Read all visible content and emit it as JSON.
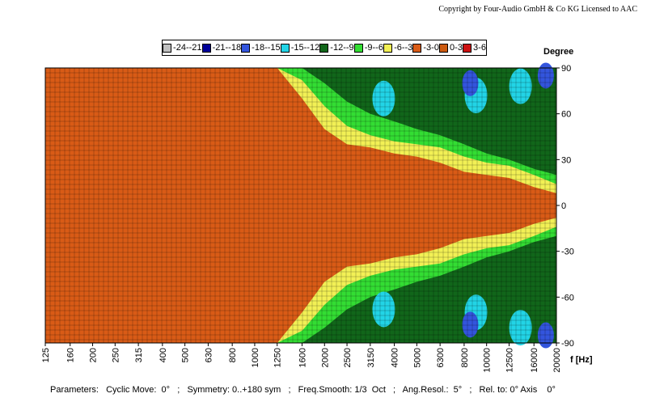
{
  "copyright": "Copyright by Four-Audio GmbH & Co KG   Licensed to AAC",
  "parameters_text": "Parameters:   Cyclic Move:  0°   ;   Symmetry: 0..+180 sym   ;   Freq.Smooth: 1/3  Oct   ;   Ang.Resol.:  5°   ;   Rel. to: 0° Axis    0°",
  "chart_data": {
    "type": "heatmap",
    "title": "",
    "xlabel": "f [Hz]",
    "ylabel": "Degree",
    "x_scale": "log",
    "x_ticks": [
      "125",
      "160",
      "200",
      "250",
      "315",
      "400",
      "500",
      "630",
      "800",
      "1000",
      "1250",
      "1600",
      "2000",
      "2500",
      "3150",
      "4000",
      "5000",
      "6300",
      "8000",
      "10000",
      "12500",
      "16000",
      "20000"
    ],
    "y_ticks": [
      "90",
      "60",
      "30",
      "0",
      "-30",
      "-60",
      "-90"
    ],
    "ylim": [
      -90,
      90
    ],
    "xlim": [
      125,
      20000
    ],
    "grid": true,
    "legend_position": "top",
    "levels": [
      {
        "label": "-24--21",
        "color": "#c0c0c0"
      },
      {
        "label": "-21--18",
        "color": "#000099"
      },
      {
        "label": "-18--15",
        "color": "#3355dd"
      },
      {
        "label": "-15--12",
        "color": "#22d4e6"
      },
      {
        "label": "-12--9",
        "color": "#11661a"
      },
      {
        "label": "-9--6",
        "color": "#33dd33"
      },
      {
        "label": "-6--3",
        "color": "#f2f055"
      },
      {
        "label": "-3-0",
        "color": "#d95b16"
      },
      {
        "label": "0-3",
        "color": "#cc5a10"
      },
      {
        "label": "3-6",
        "color": "#cc1111"
      }
    ],
    "beamwidth_edges_deg": {
      "frequencies": [
        125,
        1250,
        1600,
        2000,
        2500,
        3150,
        4000,
        5000,
        6300,
        8000,
        10000,
        12500,
        16000,
        20000
      ],
      "minus3": [
        90,
        90,
        70,
        50,
        40,
        38,
        34,
        32,
        28,
        22,
        20,
        18,
        12,
        8
      ],
      "minus6": [
        90,
        90,
        82,
        65,
        52,
        46,
        42,
        40,
        38,
        32,
        28,
        26,
        20,
        14
      ],
      "minus9": [
        90,
        90,
        90,
        80,
        68,
        60,
        55,
        50,
        46,
        40,
        34,
        30,
        24,
        20
      ]
    }
  }
}
